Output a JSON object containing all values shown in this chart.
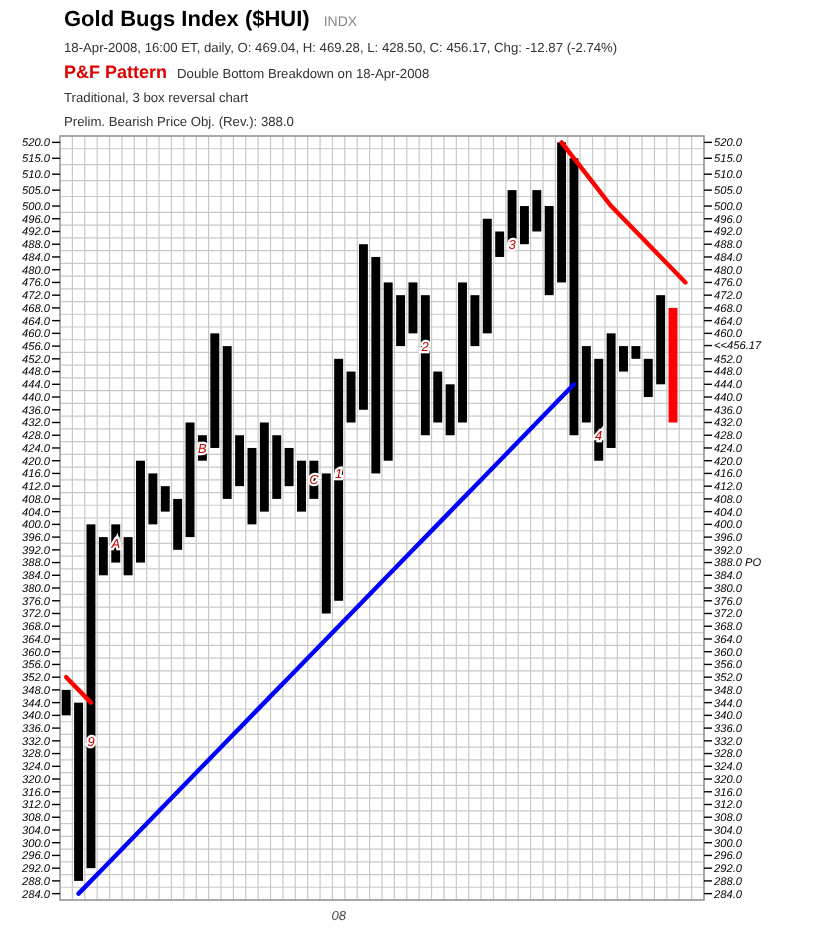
{
  "chart_data": {
    "type": "bar",
    "title": "Gold Bugs Index ($HUI)",
    "subtitle": "18-Apr-2008, 16:00 ET, daily, O: 469.04, H: 469.28, L: 428.50, C: 456.17, Chg: -12.87 (-2.74%)",
    "annotations": [
      "INDX",
      "P&F Pattern",
      "Double Bottom Breakdown on 18-Apr-2008",
      "Traditional, 3 box reversal chart",
      "Prelim. Bearish Price Obj. (Rev.): 388.0",
      "9",
      "1",
      "2",
      "3",
      "4"
    ],
    "categories": [
      null,
      null,
      null,
      null,
      null,
      null,
      null,
      null,
      null,
      null,
      null,
      null,
      null,
      null,
      null,
      null,
      null,
      null,
      null,
      null,
      null,
      null,
      "08",
      null,
      null,
      null,
      null,
      null,
      null,
      null,
      null,
      null,
      null,
      null,
      null,
      null,
      null,
      null,
      null,
      null,
      null,
      null,
      null,
      null,
      null,
      null,
      null,
      null,
      null,
      null,
      null,
      null
    ],
    "ylim": [
      282,
      522
    ],
    "yticks": [
      {
        "value": 284,
        "label": "284.0"
      },
      {
        "value": 288,
        "label": "288.0"
      },
      {
        "value": 292,
        "label": "292.0"
      },
      {
        "value": 296,
        "label": "296.0"
      },
      {
        "value": 300,
        "label": "300.0"
      },
      {
        "value": 304,
        "label": "304.0"
      },
      {
        "value": 308,
        "label": "308.0"
      },
      {
        "value": 312,
        "label": "312.0"
      },
      {
        "value": 316,
        "label": "316.0"
      },
      {
        "value": 320,
        "label": "320.0"
      },
      {
        "value": 324,
        "label": "324.0"
      },
      {
        "value": 328,
        "label": "328.0"
      },
      {
        "value": 332,
        "label": "332.0"
      },
      {
        "value": 336,
        "label": "336.0"
      },
      {
        "value": 340,
        "label": "340.0"
      },
      {
        "value": 344,
        "label": "344.0"
      },
      {
        "value": 348,
        "label": "348.0"
      },
      {
        "value": 352,
        "label": "352.0"
      },
      {
        "value": 356,
        "label": "356.0"
      },
      {
        "value": 360,
        "label": "360.0"
      },
      {
        "value": 364,
        "label": "364.0"
      },
      {
        "value": 368,
        "label": "368.0"
      },
      {
        "value": 372,
        "label": "372.0"
      },
      {
        "value": 376,
        "label": "376.0"
      },
      {
        "value": 380,
        "label": "380.0"
      },
      {
        "value": 384,
        "label": "384.0"
      },
      {
        "value": 388,
        "label": "388.0"
      },
      {
        "value": 392,
        "label": "392.0"
      },
      {
        "value": 396,
        "label": "396.0"
      },
      {
        "value": 400,
        "label": "400.0"
      },
      {
        "value": 404,
        "label": "404.0"
      },
      {
        "value": 408,
        "label": "408.0"
      },
      {
        "value": 412,
        "label": "412.0"
      },
      {
        "value": 416,
        "label": "416.0"
      },
      {
        "value": 420,
        "label": "420.0"
      },
      {
        "value": 424,
        "label": "424.0"
      },
      {
        "value": 428,
        "label": "428.0"
      },
      {
        "value": 432,
        "label": "432.0"
      },
      {
        "value": 436,
        "label": "436.0"
      },
      {
        "value": 440,
        "label": "440.0"
      },
      {
        "value": 444,
        "label": "444.0"
      },
      {
        "value": 448,
        "label": "448.0"
      },
      {
        "value": 452,
        "label": "452.0"
      },
      {
        "value": 456,
        "label": "456.0"
      },
      {
        "value": 460,
        "label": "460.0"
      },
      {
        "value": 464,
        "label": "464.0"
      },
      {
        "value": 468,
        "label": "468.0"
      },
      {
        "value": 472,
        "label": "472.0"
      },
      {
        "value": 476,
        "label": "476.0"
      },
      {
        "value": 480,
        "label": "480.0"
      },
      {
        "value": 484,
        "label": "484.0"
      },
      {
        "value": 488,
        "label": "488.0"
      },
      {
        "value": 492,
        "label": "492.0"
      },
      {
        "value": 496,
        "label": "496.0"
      },
      {
        "value": 500,
        "label": "500.0"
      },
      {
        "value": 505,
        "label": "505.0"
      },
      {
        "value": 510,
        "label": "510.0"
      },
      {
        "value": 515,
        "label": "515.0"
      },
      {
        "value": 520,
        "label": "520.0"
      }
    ],
    "y2lim": [
      282,
      522
    ],
    "y2ticks": [
      {
        "value": 284,
        "label": "284.0"
      },
      {
        "value": 288,
        "label": "288.0"
      },
      {
        "value": 292,
        "label": "292.0"
      },
      {
        "value": 296,
        "label": "296.0"
      },
      {
        "value": 300,
        "label": "300.0"
      },
      {
        "value": 304,
        "label": "304.0"
      },
      {
        "value": 308,
        "label": "308.0"
      },
      {
        "value": 312,
        "label": "312.0"
      },
      {
        "value": 316,
        "label": "316.0"
      },
      {
        "value": 320,
        "label": "320.0"
      },
      {
        "value": 324,
        "label": "324.0"
      },
      {
        "value": 328,
        "label": "328.0"
      },
      {
        "value": 332,
        "label": "332.0"
      },
      {
        "value": 336,
        "label": "336.0"
      },
      {
        "value": 340,
        "label": "340.0"
      },
      {
        "value": 344,
        "label": "344.0"
      },
      {
        "value": 348,
        "label": "348.0"
      },
      {
        "value": 352,
        "label": "352.0"
      },
      {
        "value": 356,
        "label": "356.0"
      },
      {
        "value": 360,
        "label": "360.0"
      },
      {
        "value": 364,
        "label": "364.0"
      },
      {
        "value": 368,
        "label": "368.0"
      },
      {
        "value": 372,
        "label": "372.0"
      },
      {
        "value": 376,
        "label": "376.0"
      },
      {
        "value": 380,
        "label": "380.0"
      },
      {
        "value": 384,
        "label": "384.0"
      },
      {
        "value": 388,
        "label": "388.0 PO"
      },
      {
        "value": 392,
        "label": "392.0"
      },
      {
        "value": 396,
        "label": "396.0"
      },
      {
        "value": 400,
        "label": "400.0"
      },
      {
        "value": 404,
        "label": "404.0"
      },
      {
        "value": 408,
        "label": "408.0"
      },
      {
        "value": 412,
        "label": "412.0"
      },
      {
        "value": 416,
        "label": "416.0"
      },
      {
        "value": 420,
        "label": "420.0"
      },
      {
        "value": 424,
        "label": "424.0"
      },
      {
        "value": 428,
        "label": "428.0"
      },
      {
        "value": 432,
        "label": "432.0"
      },
      {
        "value": 436,
        "label": "436.0"
      },
      {
        "value": 440,
        "label": "440.0"
      },
      {
        "value": 444,
        "label": "444.0"
      },
      {
        "value": 448,
        "label": "448.0"
      },
      {
        "value": 452,
        "label": "452.0"
      },
      {
        "value": 456.17,
        "label": "<<456.17"
      },
      {
        "value": 460,
        "label": "460.0"
      },
      {
        "value": 464,
        "label": "464.0"
      },
      {
        "value": 468,
        "label": "468.0"
      },
      {
        "value": 472,
        "label": "472.0"
      },
      {
        "value": 476,
        "label": "476.0"
      },
      {
        "value": 480,
        "label": "480.0"
      },
      {
        "value": 484,
        "label": "484.0"
      },
      {
        "value": 488,
        "label": "488.0"
      },
      {
        "value": 492,
        "label": "492.0"
      },
      {
        "value": 496,
        "label": "496.0"
      },
      {
        "value": 500,
        "label": "500.0"
      },
      {
        "value": 505,
        "label": "505.0"
      },
      {
        "value": 510,
        "label": "510.0"
      },
      {
        "value": 515,
        "label": "515.0"
      },
      {
        "value": 520,
        "label": "520.0"
      }
    ],
    "grid": true,
    "series": [
      {
        "color": "#000000",
        "base": [
          340,
          null,
          292,
          null,
          388,
          null,
          388,
          null,
          404,
          null,
          396,
          null,
          424,
          null,
          412,
          null,
          404,
          null,
          412,
          null,
          408,
          null,
          376,
          null,
          436,
          null,
          420,
          null,
          460,
          null,
          432,
          null,
          432,
          null,
          460,
          null,
          488,
          null,
          492,
          null,
          476,
          null,
          432,
          null,
          424,
          null,
          452,
          null,
          444,
          null,
          null,
          null
        ],
        "values": [
          8,
          null,
          108,
          null,
          12,
          null,
          32,
          null,
          8,
          null,
          36,
          null,
          36,
          null,
          16,
          null,
          28,
          null,
          12,
          null,
          12,
          null,
          76,
          null,
          52,
          null,
          56,
          null,
          16,
          null,
          16,
          null,
          44,
          null,
          36,
          null,
          17,
          null,
          13,
          null,
          44,
          null,
          24,
          null,
          36,
          null,
          4,
          null,
          28,
          null,
          null,
          null
        ],
        "value_labels": [
          null,
          null,
          null,
          null,
          "A",
          null,
          null,
          null,
          null,
          null,
          null,
          null,
          null,
          null,
          null,
          null,
          null,
          null,
          null,
          null,
          "C",
          null,
          null,
          null,
          null,
          null,
          null,
          null,
          null,
          null,
          null,
          null,
          null,
          null,
          null,
          null,
          null,
          null,
          null,
          null,
          null,
          null,
          null,
          null,
          null,
          null,
          null,
          null,
          null,
          null,
          null,
          null
        ]
      },
      {
        "color": "#000000",
        "base": [
          null,
          288,
          null,
          384,
          null,
          384,
          null,
          400,
          null,
          392,
          null,
          420,
          null,
          408,
          null,
          400,
          null,
          408,
          null,
          404,
          null,
          372,
          null,
          432,
          null,
          416,
          null,
          456,
          null,
          428,
          null,
          428,
          null,
          456,
          null,
          484,
          null,
          488,
          null,
          472,
          null,
          428,
          null,
          420,
          null,
          448,
          null,
          440,
          null,
          null,
          null,
          null
        ],
        "values": [
          null,
          56,
          null,
          12,
          null,
          12,
          null,
          16,
          null,
          16,
          null,
          8,
          null,
          48,
          null,
          24,
          null,
          20,
          null,
          16,
          null,
          44,
          null,
          16,
          null,
          68,
          null,
          16,
          null,
          44,
          null,
          16,
          null,
          16,
          null,
          8,
          null,
          12,
          null,
          28,
          null,
          87,
          null,
          32,
          null,
          8,
          null,
          12,
          null,
          null,
          null,
          null
        ],
        "value_labels": [
          null,
          null,
          null,
          null,
          null,
          null,
          null,
          null,
          null,
          null,
          null,
          "B",
          null,
          null,
          null,
          null,
          null,
          null,
          null,
          null,
          null,
          null,
          null,
          null,
          null,
          null,
          null,
          null,
          null,
          null,
          null,
          null,
          null,
          null,
          null,
          null,
          null,
          null,
          null,
          null,
          null,
          null,
          null,
          null,
          null,
          null,
          null,
          null,
          null,
          null,
          null,
          null
        ]
      },
      {
        "color": "#ff0000",
        "base": [
          null,
          null,
          null,
          null,
          null,
          null,
          null,
          null,
          null,
          null,
          null,
          null,
          null,
          null,
          null,
          null,
          null,
          null,
          null,
          null,
          null,
          null,
          null,
          null,
          null,
          null,
          null,
          null,
          null,
          null,
          null,
          null,
          null,
          null,
          null,
          null,
          null,
          null,
          null,
          null,
          null,
          null,
          null,
          null,
          null,
          null,
          null,
          null,
          null,
          432,
          null,
          null
        ],
        "values": [
          null,
          null,
          null,
          null,
          null,
          null,
          null,
          null,
          null,
          null,
          null,
          null,
          null,
          null,
          null,
          null,
          null,
          null,
          null,
          null,
          null,
          null,
          null,
          null,
          null,
          null,
          null,
          null,
          null,
          null,
          null,
          null,
          null,
          null,
          null,
          null,
          null,
          null,
          null,
          null,
          null,
          null,
          null,
          null,
          null,
          null,
          null,
          null,
          null,
          36,
          null,
          null
        ]
      },
      {
        "type": "line",
        "color": "#0000ff",
        "values": [
          null,
          284,
          288,
          292,
          296,
          300,
          304,
          308,
          312,
          316,
          320,
          324,
          328,
          332,
          336,
          340,
          344,
          348,
          352,
          356,
          360,
          364,
          368,
          372,
          376,
          380,
          384,
          388,
          392,
          396,
          400,
          404,
          408,
          412,
          416,
          420,
          424,
          428,
          432,
          436,
          440,
          444,
          null,
          null,
          null,
          null,
          null,
          null,
          null,
          null,
          null,
          null
        ]
      },
      {
        "type": "line",
        "color": "#ff0000",
        "values": [
          null,
          null,
          null,
          null,
          null,
          null,
          null,
          null,
          null,
          null,
          null,
          null,
          null,
          null,
          null,
          null,
          null,
          null,
          null,
          null,
          null,
          null,
          null,
          null,
          null,
          null,
          null,
          null,
          null,
          null,
          null,
          null,
          null,
          null,
          null,
          null,
          null,
          null,
          null,
          null,
          520,
          515,
          510,
          505,
          500,
          496,
          492,
          488,
          484,
          480,
          476,
          null
        ]
      },
      {
        "type": "line",
        "color": "#ff0000",
        "values": [
          352,
          348,
          344,
          null,
          null,
          null,
          null,
          null,
          null,
          null,
          null,
          null,
          null,
          null,
          null,
          null,
          null,
          null,
          null,
          null,
          null,
          null,
          null,
          null,
          null,
          null,
          null,
          null,
          null,
          null,
          null,
          null,
          null,
          null,
          null,
          null,
          null,
          null,
          null,
          null,
          null,
          null,
          null,
          null,
          null,
          null,
          null,
          null,
          null,
          null,
          null,
          null
        ]
      }
    ]
  }
}
